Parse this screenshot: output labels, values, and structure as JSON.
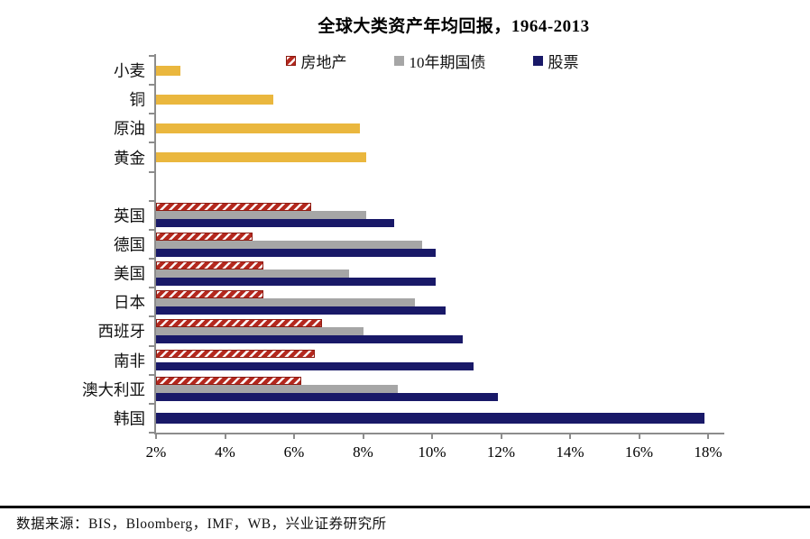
{
  "title": "全球大类资产年均回报，1964-2013",
  "footer": {
    "source": "数据来源：BIS，Bloomberg，IMF，WB，兴业证券研究所"
  },
  "colors": {
    "commodity_yellow": "#EAB73E",
    "realestate_red": "#B4281E",
    "bond_gray": "#A6A6A6",
    "stock_navy": "#191968",
    "axis_gray": "#8c8c8c"
  },
  "chart_data": {
    "type": "bar",
    "orientation": "horizontal",
    "title": "全球大类资产年均回报，1964-2013",
    "xlim": [
      2,
      18
    ],
    "x_tick_labels": [
      "2%",
      "4%",
      "6%",
      "8%",
      "10%",
      "12%",
      "14%",
      "16%",
      "18%"
    ],
    "unit": "percent",
    "legend_position": "top-inside",
    "grid": false,
    "series": [
      {
        "key": "realestate",
        "name": "房地产",
        "style": "hatched"
      },
      {
        "key": "bond",
        "name": "10年期国债",
        "style": "gray"
      },
      {
        "key": "stock",
        "name": "股票",
        "style": "navy"
      }
    ],
    "rows": [
      {
        "category": "小麦",
        "kind": "commodity",
        "value": 2.7
      },
      {
        "category": "铜",
        "kind": "commodity",
        "value": 5.4
      },
      {
        "category": "原油",
        "kind": "commodity",
        "value": 7.9
      },
      {
        "category": "黄金",
        "kind": "commodity",
        "value": 8.1
      },
      {
        "category": "",
        "kind": "spacer"
      },
      {
        "category": "英国",
        "kind": "country",
        "values": {
          "realestate": 6.5,
          "bond": 8.1,
          "stock": 8.9
        }
      },
      {
        "category": "德国",
        "kind": "country",
        "values": {
          "realestate": 4.8,
          "bond": 9.7,
          "stock": 10.1
        }
      },
      {
        "category": "美国",
        "kind": "country",
        "values": {
          "realestate": 5.1,
          "bond": 7.6,
          "stock": 10.1
        }
      },
      {
        "category": "日本",
        "kind": "country",
        "values": {
          "realestate": 5.1,
          "bond": 9.5,
          "stock": 10.4
        }
      },
      {
        "category": "西班牙",
        "kind": "country",
        "values": {
          "realestate": 6.8,
          "bond": 8.0,
          "stock": 10.9
        }
      },
      {
        "category": "南非",
        "kind": "country",
        "values": {
          "realestate": 6.6,
          "bond": null,
          "stock": 11.2
        }
      },
      {
        "category": "澳大利亚",
        "kind": "country",
        "values": {
          "realestate": 6.2,
          "bond": 9.0,
          "stock": 11.9
        }
      },
      {
        "category": "韩国",
        "kind": "country",
        "values": {
          "realestate": null,
          "bond": null,
          "stock": 17.9
        }
      }
    ]
  }
}
